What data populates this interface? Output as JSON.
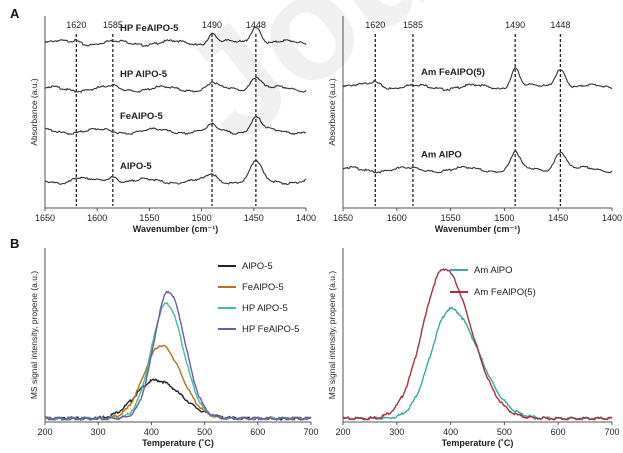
{
  "figure": {
    "panel_a": "A",
    "panel_b": "B",
    "watermark": "Journal"
  },
  "chart_data": [
    {
      "type": "line",
      "panel": "A",
      "xlabel": "Wavenumber (cm⁻¹)",
      "ylabel": "Absorbance (a.u.)",
      "xlim": [
        1650,
        1400
      ],
      "x_reversed": true,
      "xticks": [
        1650,
        1600,
        1550,
        1500,
        1450,
        1400
      ],
      "grid": false,
      "reference_lines": [
        1620,
        1585,
        1490,
        1448
      ],
      "reference_labels": [
        "1620",
        "1585",
        "1490",
        "1448"
      ],
      "series": [
        {
          "name": "HP FeAlPO-5",
          "baseline": 0.86,
          "peaks": [
            {
              "x": 1448,
              "h": 0.09,
              "w": 5
            },
            {
              "x": 1490,
              "h": 0.05,
              "w": 4
            },
            {
              "x": 1620,
              "h": 0.015,
              "w": 4
            }
          ]
        },
        {
          "name": "HP AlPO-5",
          "baseline": 0.62,
          "peaks": [
            {
              "x": 1448,
              "h": 0.07,
              "w": 5
            },
            {
              "x": 1490,
              "h": 0.03,
              "w": 4
            },
            {
              "x": 1585,
              "h": 0.01,
              "w": 4
            }
          ]
        },
        {
          "name": "FeAlPO-5",
          "baseline": 0.4,
          "peaks": [
            {
              "x": 1448,
              "h": 0.07,
              "w": 5
            },
            {
              "x": 1490,
              "h": 0.025,
              "w": 4
            }
          ]
        },
        {
          "name": "AlPO-5",
          "baseline": 0.14,
          "peaks": [
            {
              "x": 1448,
              "h": 0.1,
              "w": 5
            },
            {
              "x": 1490,
              "h": 0.035,
              "w": 4
            },
            {
              "x": 1585,
              "h": 0.03,
              "w": 5
            },
            {
              "x": 1620,
              "h": 0.015,
              "w": 4
            }
          ]
        }
      ]
    },
    {
      "type": "line",
      "panel": "A",
      "xlabel": "Wavenumber (cm⁻¹)",
      "ylabel": "Absorbance (a.u.)",
      "xlim": [
        1650,
        1400
      ],
      "x_reversed": true,
      "xticks": [
        1650,
        1600,
        1550,
        1500,
        1450,
        1400
      ],
      "grid": false,
      "reference_lines": [
        1620,
        1585,
        1490,
        1448
      ],
      "reference_labels": [
        "1620",
        "1585",
        "1490",
        "1448"
      ],
      "series": [
        {
          "name": "Am FeAlPO(5)",
          "baseline": 0.63,
          "peaks": [
            {
              "x": 1448,
              "h": 0.1,
              "w": 5
            },
            {
              "x": 1490,
              "h": 0.1,
              "w": 4
            },
            {
              "x": 1620,
              "h": 0.03,
              "w": 6
            }
          ]
        },
        {
          "name": "Am AlPO",
          "baseline": 0.2,
          "peaks": [
            {
              "x": 1448,
              "h": 0.1,
              "w": 5
            },
            {
              "x": 1490,
              "h": 0.09,
              "w": 4
            }
          ]
        }
      ]
    },
    {
      "type": "line",
      "panel": "B",
      "xlabel": "Temperature (˚C)",
      "ylabel": "MS signal intensity, propene (a.u.)",
      "xlim": [
        200,
        700
      ],
      "xticks": [
        200,
        300,
        400,
        500,
        600,
        700
      ],
      "ylim": [
        0,
        1
      ],
      "grid": false,
      "legend": "top-right",
      "series": [
        {
          "name": "AlPO-5",
          "color": "#222222",
          "center": 408,
          "height": 0.22,
          "sigma_left": 38,
          "sigma_right": 48,
          "baseline": 0.02
        },
        {
          "name": "FeAlPO-5",
          "color": "#b5721c",
          "center": 418,
          "height": 0.42,
          "sigma_left": 32,
          "sigma_right": 38,
          "baseline": 0.02
        },
        {
          "name": "HP AlPO-5",
          "color": "#3fbf9a",
          "center": 428,
          "height": 0.66,
          "sigma_left": 28,
          "sigma_right": 32,
          "baseline": 0.02
        },
        {
          "name": "HP FeAlPO-5",
          "color": "#6c5aa8",
          "center": 432,
          "height": 0.73,
          "sigma_left": 27,
          "sigma_right": 31,
          "baseline": 0.02
        }
      ]
    },
    {
      "type": "line",
      "panel": "B",
      "xlabel": "Temperature (˚C)",
      "ylabel": "MS signal intensity, propene (a.u.)",
      "xlim": [
        200,
        700
      ],
      "xticks": [
        200,
        300,
        400,
        500,
        600,
        700
      ],
      "ylim": [
        0,
        1
      ],
      "grid": false,
      "legend": "top-right",
      "series": [
        {
          "name": "Am AlPO",
          "color": "#3aa7a0",
          "center": 400,
          "height": 0.63,
          "sigma_left": 36,
          "sigma_right": 52,
          "baseline": 0.02
        },
        {
          "name": "Am FeAlPO(5)",
          "color": "#a8323a",
          "center": 388,
          "height": 0.86,
          "sigma_left": 40,
          "sigma_right": 50,
          "baseline": 0.02
        }
      ]
    }
  ]
}
